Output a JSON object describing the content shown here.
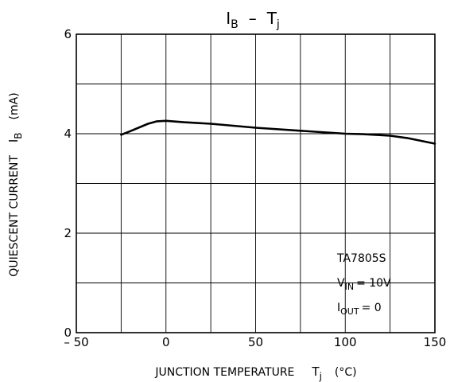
{
  "chart_data": {
    "type": "line",
    "title": {
      "main": "I",
      "main_sub": "B",
      "dash": "–",
      "second": "T",
      "second_sub": "j"
    },
    "xlabel": {
      "text": "JUNCTION  TEMPERATURE",
      "symbol": "T",
      "symbol_sub": "j",
      "unit": "(°C)"
    },
    "ylabel": {
      "text": "QUIESCENT  CURRENT",
      "symbol": "I",
      "symbol_sub": "B",
      "unit": "(mA)"
    },
    "xlim": [
      -50,
      150
    ],
    "ylim": [
      0,
      6
    ],
    "x_ticks": [
      -50,
      0,
      50,
      100,
      150
    ],
    "x_tick_labels": [
      "– 50",
      "0",
      "50",
      "100",
      "150"
    ],
    "y_ticks": [
      0,
      2,
      4,
      6
    ],
    "y_tick_labels": [
      "0",
      "2",
      "4",
      "6"
    ],
    "grid": true,
    "x_grid_step": 25,
    "y_grid_step": 1,
    "series": [
      {
        "x": [
          -25,
          -20,
          -10,
          -5,
          0,
          10,
          25,
          50,
          75,
          100,
          110,
          125,
          135,
          150
        ],
        "y": [
          3.98,
          4.05,
          4.2,
          4.25,
          4.26,
          4.23,
          4.2,
          4.12,
          4.06,
          4.0,
          3.99,
          3.96,
          3.91,
          3.8
        ]
      }
    ],
    "annotation": {
      "device": "TA7805S",
      "vin": {
        "symbol": "V",
        "sub": "IN",
        "value": "= 10V"
      },
      "iout": {
        "symbol": "I",
        "sub": "OUT",
        "value": "= 0"
      }
    }
  }
}
